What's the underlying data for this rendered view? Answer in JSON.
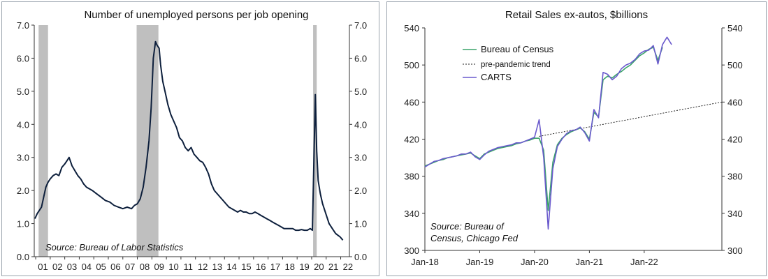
{
  "chart_data": [
    {
      "type": "line",
      "title": "Number of unemployed persons per job opening",
      "source": "Source: Bureau of Labor Statistics",
      "xlabel": "",
      "ylabel": "",
      "x_ticks": [
        "01",
        "02",
        "03",
        "04",
        "05",
        "06",
        "07",
        "08",
        "09",
        "10",
        "11",
        "12",
        "13",
        "14",
        "15",
        "16",
        "17",
        "18",
        "19",
        "20",
        "21",
        "22"
      ],
      "y_ticks": [
        "0.0",
        "1.0",
        "2.0",
        "3.0",
        "4.0",
        "5.0",
        "6.0",
        "7.0"
      ],
      "xlim": [
        2000.9,
        2022.6
      ],
      "ylim": [
        0,
        7
      ],
      "grid": false,
      "dual_axis": true,
      "line_color": "#0d1f3c",
      "recession_color": "#bfbfbf",
      "recessions": [
        [
          2001.2,
          2001.85
        ],
        [
          2007.95,
          2009.45
        ],
        [
          2020.1,
          2020.35
        ]
      ],
      "series": [
        {
          "x": [
            2000.95,
            2001.1,
            2001.25,
            2001.4,
            2001.55,
            2001.7,
            2001.85,
            2002.0,
            2002.2,
            2002.4,
            2002.6,
            2002.8,
            2003.0,
            2003.15,
            2003.3,
            2003.5,
            2003.7,
            2003.9,
            2004.1,
            2004.3,
            2004.5,
            2004.7,
            2004.9,
            2005.2,
            2005.5,
            2005.8,
            2006.1,
            2006.4,
            2006.7,
            2007.0,
            2007.3,
            2007.6,
            2007.8,
            2008.0,
            2008.2,
            2008.4,
            2008.6,
            2008.8,
            2008.95,
            2009.1,
            2009.25,
            2009.35,
            2009.5,
            2009.6,
            2009.75,
            2009.9,
            2010.1,
            2010.3,
            2010.5,
            2010.7,
            2010.9,
            2011.1,
            2011.3,
            2011.5,
            2011.7,
            2011.9,
            2012.1,
            2012.3,
            2012.5,
            2012.7,
            2012.9,
            2013.1,
            2013.3,
            2013.5,
            2013.7,
            2013.9,
            2014.1,
            2014.3,
            2014.5,
            2014.7,
            2014.9,
            2015.1,
            2015.3,
            2015.5,
            2015.7,
            2015.9,
            2016.1,
            2016.3,
            2016.5,
            2016.7,
            2016.9,
            2017.1,
            2017.3,
            2017.5,
            2017.7,
            2017.9,
            2018.1,
            2018.3,
            2018.5,
            2018.7,
            2018.9,
            2019.1,
            2019.3,
            2019.5,
            2019.7,
            2019.9,
            2020.05,
            2020.15,
            2020.25,
            2020.35,
            2020.45,
            2020.6,
            2020.75,
            2020.9,
            2021.05,
            2021.2,
            2021.35,
            2021.5,
            2021.65,
            2021.8,
            2021.95,
            2022.05,
            2022.15
          ],
          "values": [
            1.15,
            1.3,
            1.4,
            1.5,
            1.8,
            2.1,
            2.25,
            2.35,
            2.45,
            2.5,
            2.45,
            2.7,
            2.8,
            2.9,
            3.0,
            2.75,
            2.6,
            2.45,
            2.35,
            2.2,
            2.1,
            2.05,
            2.0,
            1.9,
            1.8,
            1.7,
            1.65,
            1.55,
            1.5,
            1.45,
            1.5,
            1.45,
            1.55,
            1.6,
            1.75,
            2.1,
            2.7,
            3.5,
            4.5,
            6.0,
            6.5,
            6.4,
            6.3,
            5.8,
            5.3,
            5.0,
            4.6,
            4.3,
            4.1,
            3.9,
            3.6,
            3.5,
            3.3,
            3.2,
            3.3,
            3.1,
            3.0,
            2.9,
            2.85,
            2.7,
            2.5,
            2.2,
            2.0,
            1.9,
            1.8,
            1.7,
            1.6,
            1.5,
            1.45,
            1.4,
            1.35,
            1.4,
            1.35,
            1.35,
            1.3,
            1.3,
            1.35,
            1.3,
            1.25,
            1.2,
            1.15,
            1.1,
            1.05,
            1.0,
            0.95,
            0.9,
            0.85,
            0.85,
            0.85,
            0.85,
            0.8,
            0.8,
            0.82,
            0.8,
            0.8,
            0.85,
            0.8,
            2.8,
            4.9,
            3.2,
            2.3,
            1.9,
            1.6,
            1.4,
            1.2,
            1.0,
            0.9,
            0.8,
            0.7,
            0.65,
            0.6,
            0.55,
            0.5
          ]
        }
      ]
    },
    {
      "type": "line",
      "title": "Retail Sales ex-autos, $billions",
      "source": [
        "Source: Bureau of",
        "Census, Chicago Fed"
      ],
      "xlabel": "",
      "ylabel": "",
      "x_ticks": [
        "Jan-18",
        "Jan-19",
        "Jan-20",
        "Jan-21",
        "Jan-22"
      ],
      "x_tick_values": [
        0,
        12,
        24,
        36,
        48
      ],
      "y_ticks": [
        "300",
        "340",
        "380",
        "420",
        "460",
        "500",
        "540"
      ],
      "xlim": [
        0,
        65
      ],
      "ylim": [
        300,
        540
      ],
      "grid": false,
      "dual_axis": true,
      "legend_position": "top-left",
      "series": [
        {
          "name": "Bureau of Census",
          "color": "#3aa36a",
          "style": "solid",
          "x": [
            0,
            1,
            2,
            3,
            4,
            5,
            6,
            7,
            8,
            9,
            10,
            11,
            12,
            13,
            14,
            15,
            16,
            17,
            18,
            19,
            20,
            21,
            22,
            23,
            24,
            25,
            26,
            27,
            28,
            29,
            30,
            31,
            32,
            33,
            34,
            35,
            36,
            37,
            38,
            39,
            40,
            41,
            42,
            43,
            44,
            45,
            46,
            47,
            48,
            49,
            50,
            51,
            52
          ],
          "values": [
            391,
            393,
            395,
            397,
            398,
            400,
            401,
            402,
            403,
            404,
            405,
            402,
            399,
            404,
            406,
            408,
            410,
            411,
            412,
            413,
            415,
            416,
            418,
            419,
            421,
            421,
            408,
            343,
            395,
            414,
            421,
            425,
            428,
            430,
            432,
            428,
            420,
            449,
            444,
            484,
            488,
            486,
            490,
            493,
            497,
            500,
            505,
            510,
            513,
            517,
            519,
            505,
            519
          ]
        },
        {
          "name": "CARTS",
          "color": "#6a5acd",
          "style": "solid",
          "x": [
            0,
            1,
            2,
            3,
            4,
            5,
            6,
            7,
            8,
            9,
            10,
            11,
            12,
            13,
            14,
            15,
            16,
            17,
            18,
            19,
            20,
            21,
            22,
            23,
            24,
            25,
            26,
            27,
            28,
            29,
            30,
            31,
            32,
            33,
            34,
            35,
            36,
            37,
            38,
            39,
            40,
            41,
            42,
            43,
            44,
            45,
            46,
            47,
            48,
            49,
            50,
            51,
            52,
            53,
            54
          ],
          "values": [
            390,
            393,
            396,
            397,
            399,
            400,
            401,
            402,
            404,
            404,
            406,
            401,
            398,
            403,
            407,
            409,
            411,
            412,
            413,
            414,
            416,
            416,
            418,
            420,
            422,
            441,
            400,
            323,
            388,
            412,
            420,
            426,
            429,
            430,
            433,
            427,
            418,
            452,
            443,
            492,
            490,
            484,
            488,
            496,
            500,
            502,
            506,
            512,
            515,
            516,
            521,
            501,
            522,
            530,
            522
          ]
        },
        {
          "name": "pre-pandemic trend",
          "color": "#222222",
          "style": "dotted",
          "x": [
            25,
            65
          ],
          "values": [
            423,
            460
          ]
        }
      ]
    }
  ]
}
